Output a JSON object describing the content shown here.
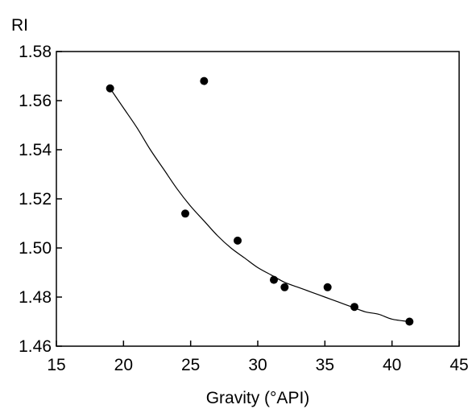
{
  "chart_data": {
    "type": "scatter",
    "title": "",
    "xlabel": "Gravity (°API)",
    "ylabel": "RI",
    "xlim": [
      15,
      45
    ],
    "ylim": [
      1.46,
      1.58
    ],
    "x_ticks": [
      "15",
      "20",
      "25",
      "30",
      "35",
      "40",
      "45"
    ],
    "y_ticks": [
      "1.46",
      "1.48",
      "1.50",
      "1.52",
      "1.54",
      "1.56",
      "1.58"
    ],
    "grid": false,
    "series": [
      {
        "type": "scatter",
        "points": [
          {
            "x": 19.0,
            "y": 1.565
          },
          {
            "x": 24.6,
            "y": 1.514
          },
          {
            "x": 26.0,
            "y": 1.568
          },
          {
            "x": 28.5,
            "y": 1.503
          },
          {
            "x": 31.2,
            "y": 1.487
          },
          {
            "x": 32.0,
            "y": 1.484
          },
          {
            "x": 35.2,
            "y": 1.484
          },
          {
            "x": 37.2,
            "y": 1.476
          },
          {
            "x": 41.3,
            "y": 1.47
          }
        ],
        "color": "#000000"
      },
      {
        "type": "line",
        "points": [
          {
            "x": 19.0,
            "y": 1.565
          },
          {
            "x": 20.0,
            "y": 1.557
          },
          {
            "x": 21.0,
            "y": 1.549
          },
          {
            "x": 22.0,
            "y": 1.54
          },
          {
            "x": 23.0,
            "y": 1.532
          },
          {
            "x": 24.0,
            "y": 1.524
          },
          {
            "x": 25.0,
            "y": 1.517
          },
          {
            "x": 26.0,
            "y": 1.511
          },
          {
            "x": 27.0,
            "y": 1.505
          },
          {
            "x": 28.0,
            "y": 1.5
          },
          {
            "x": 29.0,
            "y": 1.496
          },
          {
            "x": 30.0,
            "y": 1.492
          },
          {
            "x": 31.0,
            "y": 1.489
          },
          {
            "x": 32.0,
            "y": 1.486
          },
          {
            "x": 33.0,
            "y": 1.484
          },
          {
            "x": 34.0,
            "y": 1.482
          },
          {
            "x": 35.0,
            "y": 1.48
          },
          {
            "x": 36.0,
            "y": 1.478
          },
          {
            "x": 37.0,
            "y": 1.476
          },
          {
            "x": 38.0,
            "y": 1.474
          },
          {
            "x": 39.0,
            "y": 1.473
          },
          {
            "x": 40.0,
            "y": 1.471
          },
          {
            "x": 41.3,
            "y": 1.47
          }
        ],
        "color": "#000000"
      }
    ]
  }
}
